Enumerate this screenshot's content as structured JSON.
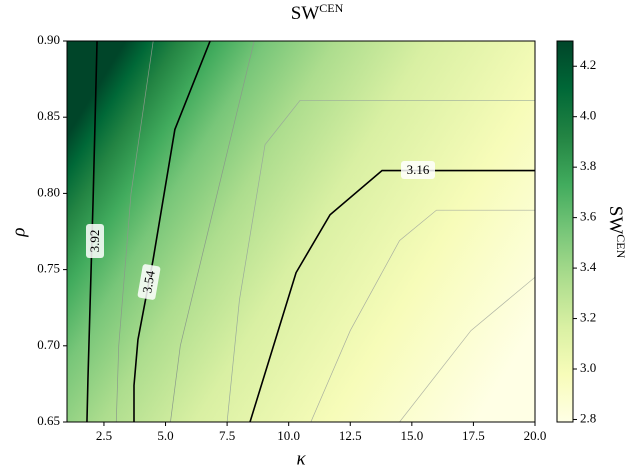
{
  "chart_data": {
    "type": "contour",
    "title": {
      "base": "SW",
      "sup": "CEN"
    },
    "xlabel": "κ",
    "ylabel": "ρ",
    "xlim": [
      1,
      20
    ],
    "ylim": [
      0.65,
      0.9
    ],
    "xticks": [
      2.5,
      {
        "value": 5,
        "label": "5.0"
      },
      7.5,
      {
        "value": 10,
        "label": "10.0"
      },
      12.5,
      {
        "value": 15,
        "label": "15.0"
      },
      17.5,
      {
        "value": 20,
        "label": "20.0"
      }
    ],
    "yticks": [
      0.65,
      {
        "value": 0.7,
        "label": "0.70"
      },
      0.75,
      {
        "value": 0.8,
        "label": "0.80"
      },
      0.85,
      {
        "value": 0.9,
        "label": "0.90"
      }
    ],
    "colormap": [
      "#004529",
      "#006837",
      "#238443",
      "#41ab5d",
      "#78c679",
      "#addd8e",
      "#d9f0a3",
      "#f7fcb9",
      "#ffffe5"
    ],
    "colorbar": {
      "label": {
        "base": "SW",
        "sup": "CEN"
      },
      "clim": [
        2.79,
        4.3
      ],
      "ticks": [
        2.8,
        {
          "value": 3,
          "label": "3.0"
        },
        3.2,
        3.4,
        3.6,
        3.8,
        {
          "value": 4,
          "label": "4.0"
        },
        4.2
      ]
    },
    "contours": [
      {
        "level": 3.92,
        "color": "#000000",
        "labeled": true,
        "x": [
          2.22,
          2.06,
          1.85,
          1.81
        ],
        "y": [
          0.9,
          0.796,
          0.678,
          0.65
        ]
      },
      {
        "level": 3.54,
        "color": "#000000",
        "labeled": true,
        "x": [
          6.81,
          5.38,
          4.49,
          3.88,
          3.72,
          3.72
        ],
        "y": [
          0.9,
          0.842,
          0.756,
          0.704,
          0.674,
          0.65
        ]
      },
      {
        "level": 3.16,
        "color": "#000000",
        "labeled": true,
        "x": [
          20,
          13.79,
          11.68,
          10.3,
          8.43
        ],
        "y": [
          0.815,
          0.815,
          0.786,
          0.748,
          0.65
        ]
      },
      {
        "level": 3.67,
        "color": "#8a9a8a",
        "labeled": false,
        "x": [
          4.5,
          3.6,
          3.1,
          3.0
        ],
        "y": [
          0.9,
          0.8,
          0.7,
          0.65
        ]
      },
      {
        "level": 3.41,
        "color": "#8a9a8a",
        "labeled": false,
        "x": [
          8.6,
          6.8,
          5.6,
          5.2
        ],
        "y": [
          0.9,
          0.78,
          0.7,
          0.65
        ]
      },
      {
        "level": 3.29,
        "color": "#9aaa9a",
        "labeled": false,
        "x": [
          20,
          10.46,
          9.04,
          8.0,
          7.5
        ],
        "y": [
          0.861,
          0.861,
          0.832,
          0.73,
          0.65
        ]
      },
      {
        "level": 3.03,
        "color": "#aab0a0",
        "labeled": false,
        "x": [
          20,
          16.0,
          14.5,
          12.5,
          10.9
        ],
        "y": [
          0.789,
          0.789,
          0.769,
          0.71,
          0.65
        ]
      },
      {
        "level": 2.91,
        "color": "#b0b5a5",
        "labeled": false,
        "x": [
          20,
          17.4,
          14.5
        ],
        "y": [
          0.745,
          0.71,
          0.65
        ]
      }
    ]
  }
}
